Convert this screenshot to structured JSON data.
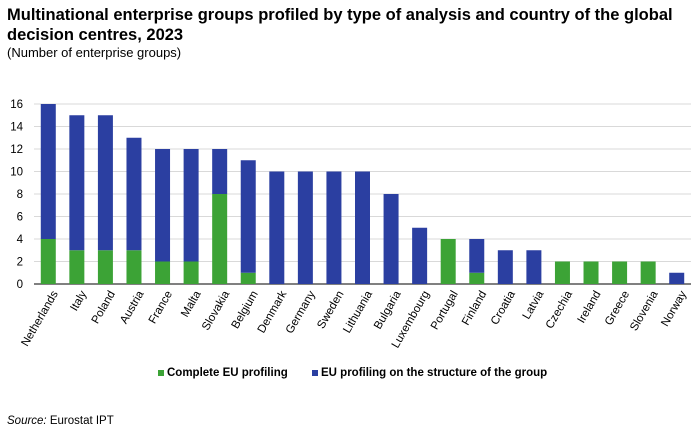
{
  "title": "Multinational enterprise groups profiled by type of analysis and country of the global decision centres, 2023",
  "subtitle": "(Number  of enterprise groups)",
  "source_label": "Source:",
  "source_text": " Eurostat IPT",
  "colors": {
    "complete": "#3ca336",
    "structure": "#2b3fa1",
    "grid": "#d9d9d9",
    "axis": "#000000"
  },
  "chart_data": {
    "type": "bar",
    "stacked": true,
    "categories": [
      "Netherlands",
      "Italy",
      "Poland",
      "Austria",
      "France",
      "Malta",
      "Slovakia",
      "Belgium",
      "Denmark",
      "Germany",
      "Sweden",
      "Lithuania",
      "Bulgaria",
      "Luxembourg",
      "Portugal",
      "Finland",
      "Croatia",
      "Latvia",
      "Czechia",
      "Ireland",
      "Greece",
      "Slovenia",
      "Norway"
    ],
    "series": [
      {
        "name": "Complete EU profiling",
        "color": "#3ca336",
        "values": [
          4,
          3,
          3,
          3,
          2,
          2,
          8,
          1,
          0,
          0,
          0,
          0,
          0,
          0,
          4,
          1,
          0,
          0,
          2,
          2,
          2,
          2,
          0
        ]
      },
      {
        "name": "EU profiling on the structure of the group",
        "color": "#2b3fa1",
        "values": [
          12,
          12,
          12,
          10,
          10,
          10,
          4,
          10,
          10,
          10,
          10,
          10,
          8,
          5,
          0,
          3,
          3,
          3,
          0,
          0,
          0,
          0,
          1
        ]
      }
    ],
    "ylim": [
      0,
      16
    ],
    "yticks": [
      0,
      2,
      4,
      6,
      8,
      10,
      12,
      14,
      16
    ],
    "grid": true,
    "legend_position": "bottom"
  }
}
